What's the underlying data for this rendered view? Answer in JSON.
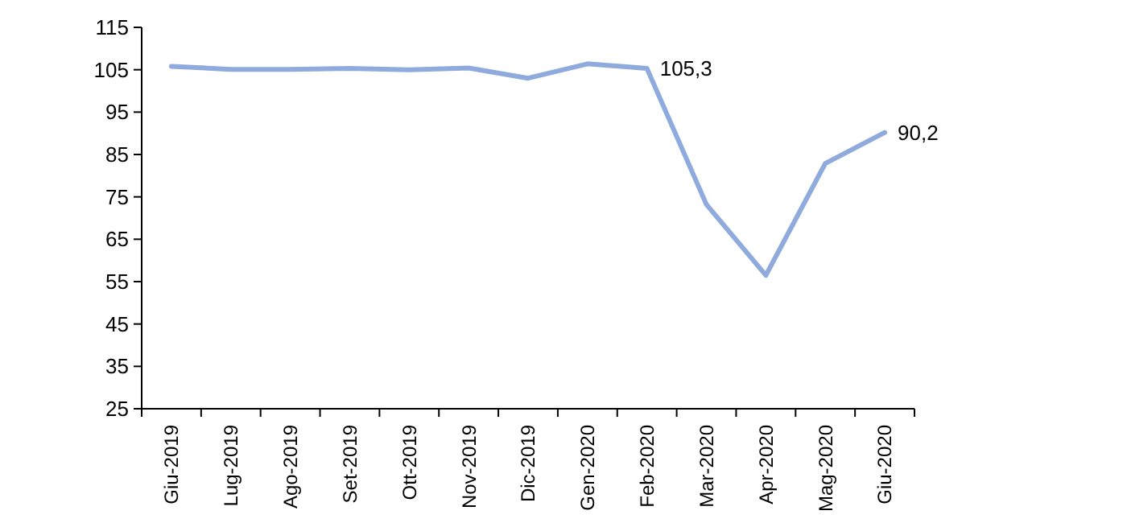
{
  "chart_data": {
    "type": "line",
    "categories": [
      "Giu-2019",
      "Lug-2019",
      "Ago-2019",
      "Set-2019",
      "Ott-2019",
      "Nov-2019",
      "Dic-2019",
      "Gen-2020",
      "Feb-2020",
      "Mar-2020",
      "Apr-2020",
      "Mag-2020",
      "Giu-2020"
    ],
    "series": [
      {
        "color": "#8faadc",
        "values": [
          105.8,
          105.1,
          105.1,
          105.3,
          105.0,
          105.4,
          103.0,
          106.4,
          105.3,
          73.2,
          56.5,
          82.9,
          90.2
        ],
        "value_labels": [
          null,
          null,
          null,
          null,
          null,
          null,
          null,
          null,
          "105,3",
          null,
          null,
          null,
          "90,2"
        ]
      }
    ],
    "ylim": [
      25,
      115
    ],
    "yticks": [
      25,
      35,
      45,
      55,
      65,
      75,
      85,
      95,
      105,
      115
    ],
    "marker": "none",
    "line_style": "solid"
  }
}
